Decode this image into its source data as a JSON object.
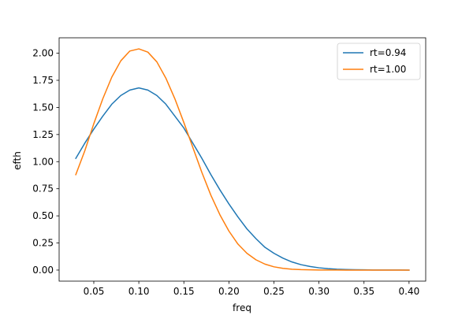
{
  "chart_data": {
    "type": "line",
    "title": "",
    "xlabel": "freq",
    "ylabel": "efth",
    "xlim": [
      0.0115,
      0.4185
    ],
    "ylim": [
      -0.102,
      2.142
    ],
    "xticks": [
      0.05,
      0.1,
      0.15,
      0.2,
      0.25,
      0.3,
      0.35,
      0.4
    ],
    "xtick_labels": [
      "0.05",
      "0.10",
      "0.15",
      "0.20",
      "0.25",
      "0.30",
      "0.35",
      "0.40"
    ],
    "yticks": [
      0.0,
      0.25,
      0.5,
      0.75,
      1.0,
      1.25,
      1.5,
      1.75,
      2.0
    ],
    "ytick_labels": [
      "0.00",
      "0.25",
      "0.50",
      "0.75",
      "1.00",
      "1.25",
      "1.50",
      "1.75",
      "2.00"
    ],
    "grid": false,
    "legend_position": "top-right",
    "series": [
      {
        "name": "rt=0.94",
        "color": "#1f77b4",
        "x": [
          0.03,
          0.04,
          0.05,
          0.06,
          0.07,
          0.08,
          0.09,
          0.1,
          0.11,
          0.12,
          0.13,
          0.14,
          0.15,
          0.16,
          0.17,
          0.18,
          0.19,
          0.2,
          0.21,
          0.22,
          0.23,
          0.24,
          0.25,
          0.26,
          0.27,
          0.28,
          0.29,
          0.3,
          0.31,
          0.32,
          0.33,
          0.34,
          0.35,
          0.36,
          0.37,
          0.38,
          0.39,
          0.4
        ],
        "y": [
          1.03,
          1.17,
          1.3,
          1.42,
          1.53,
          1.61,
          1.66,
          1.68,
          1.66,
          1.61,
          1.53,
          1.42,
          1.31,
          1.17,
          1.03,
          0.88,
          0.74,
          0.61,
          0.49,
          0.38,
          0.29,
          0.21,
          0.155,
          0.11,
          0.075,
          0.05,
          0.033,
          0.021,
          0.013,
          0.008,
          0.005,
          0.003,
          0.002,
          0.001,
          0.0005,
          0.0003,
          0.0002,
          0.0001
        ]
      },
      {
        "name": "rt=1.00",
        "color": "#ff7f0e",
        "x": [
          0.03,
          0.04,
          0.05,
          0.06,
          0.07,
          0.08,
          0.09,
          0.1,
          0.11,
          0.12,
          0.13,
          0.14,
          0.15,
          0.16,
          0.17,
          0.18,
          0.19,
          0.2,
          0.21,
          0.22,
          0.23,
          0.24,
          0.25,
          0.26,
          0.27,
          0.28,
          0.29,
          0.3,
          0.31,
          0.32,
          0.33,
          0.34,
          0.35,
          0.36,
          0.37,
          0.38,
          0.39,
          0.4
        ],
        "y": [
          0.88,
          1.1,
          1.35,
          1.58,
          1.78,
          1.93,
          2.02,
          2.04,
          2.01,
          1.92,
          1.77,
          1.58,
          1.36,
          1.13,
          0.9,
          0.69,
          0.51,
          0.36,
          0.24,
          0.155,
          0.095,
          0.055,
          0.03,
          0.016,
          0.008,
          0.004,
          0.002,
          0.001,
          0.0005,
          0.0002,
          0.0001,
          0.0,
          0.0,
          0.0,
          0.0,
          0.0,
          0.0,
          0.0
        ]
      }
    ]
  }
}
